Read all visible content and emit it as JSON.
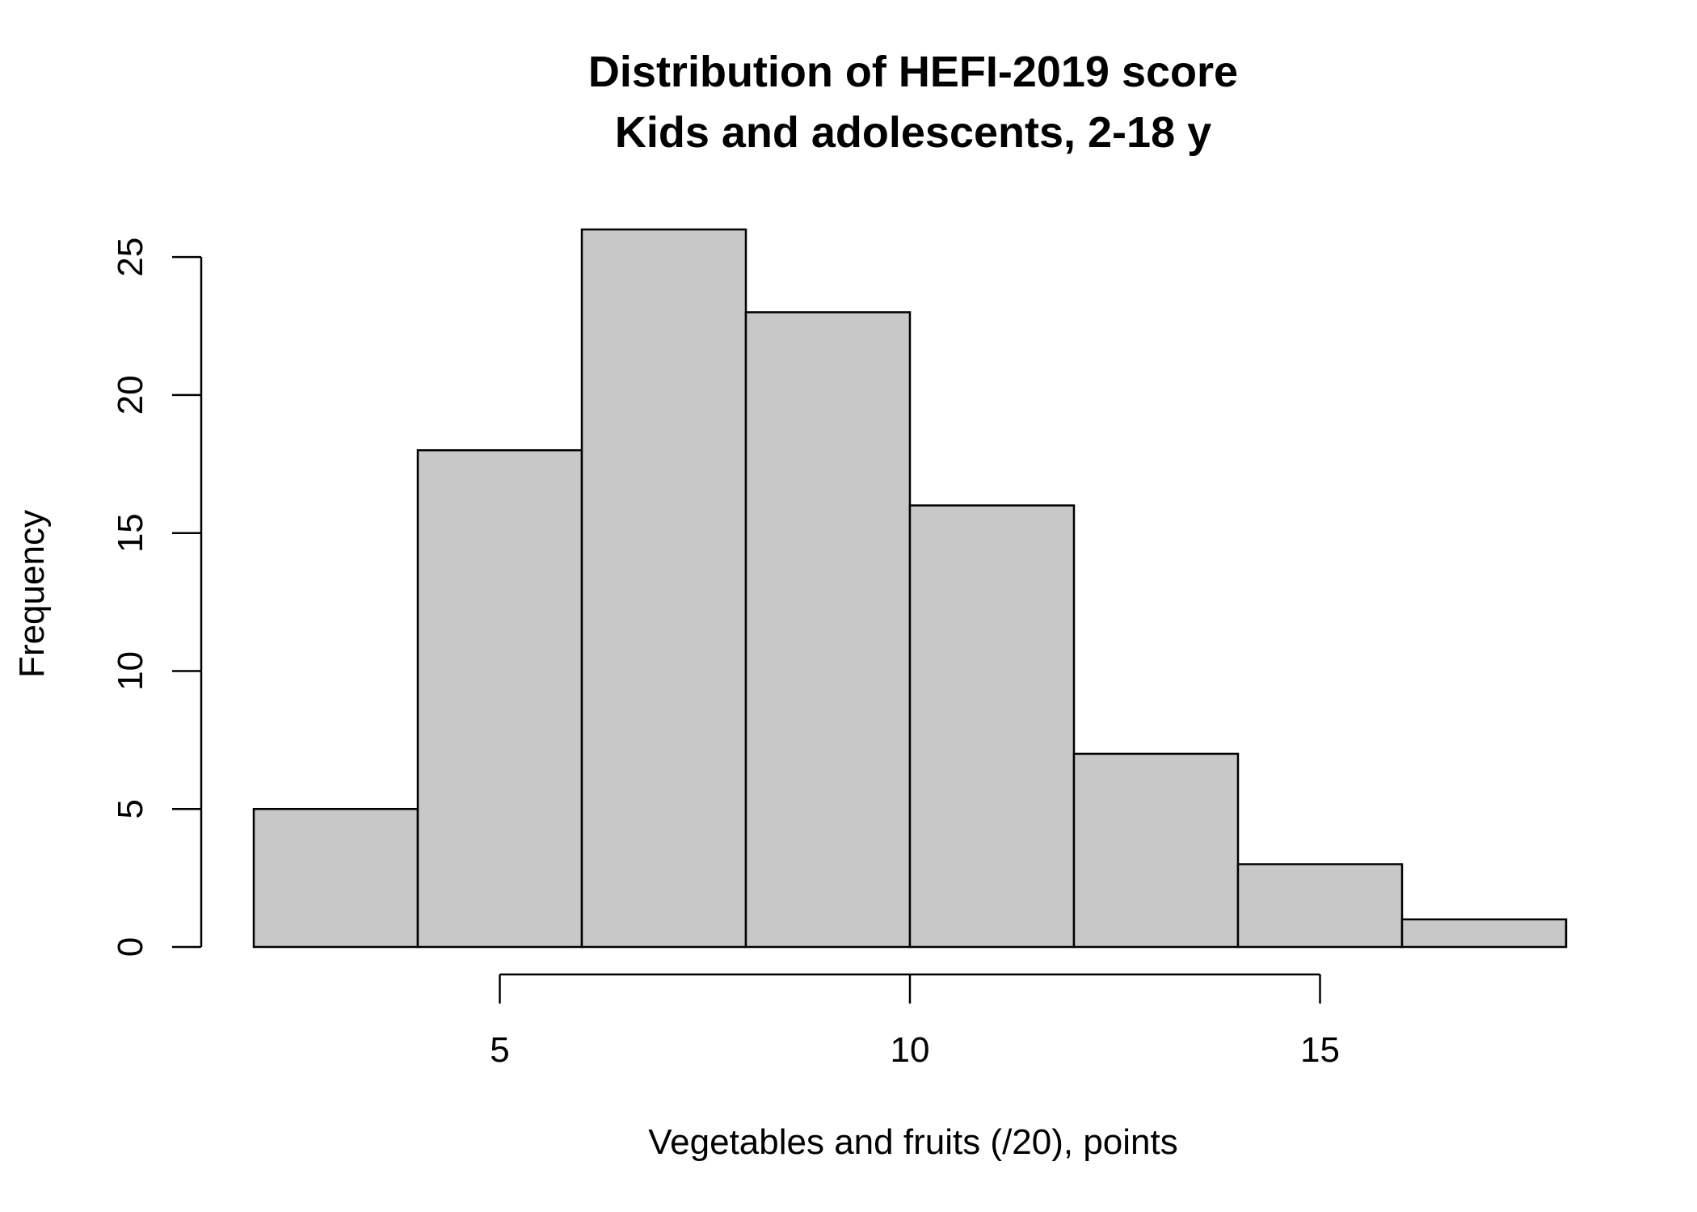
{
  "chart_data": {
    "type": "bar",
    "subtype": "histogram",
    "title": "Distribution of HEFI-2019 score",
    "subtitle": "Kids and adolescents, 2-18 y",
    "xlabel": "Vegetables and fruits (/20), points",
    "ylabel": "Frequency",
    "bins": [
      {
        "x0": 2,
        "x1": 4,
        "count": 5
      },
      {
        "x0": 4,
        "x1": 6,
        "count": 18
      },
      {
        "x0": 6,
        "x1": 8,
        "count": 26
      },
      {
        "x0": 8,
        "x1": 10,
        "count": 23
      },
      {
        "x0": 10,
        "x1": 12,
        "count": 16
      },
      {
        "x0": 12,
        "x1": 14,
        "count": 7
      },
      {
        "x0": 14,
        "x1": 16,
        "count": 3
      },
      {
        "x0": 16,
        "x1": 18,
        "count": 1
      }
    ],
    "xlim": [
      2,
      18
    ],
    "ylim": [
      0,
      26
    ],
    "x_ticks": [
      5,
      10,
      15
    ],
    "y_ticks": [
      0,
      5,
      10,
      15,
      20,
      25
    ],
    "grid": false,
    "legend": "none",
    "colors": {
      "bar_fill": "#c8c8c8",
      "bar_stroke": "#000000"
    }
  }
}
